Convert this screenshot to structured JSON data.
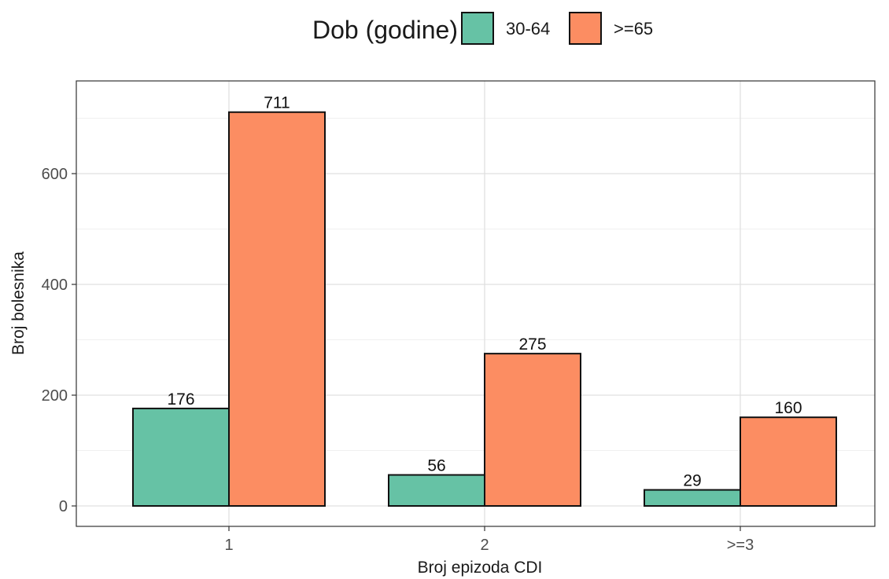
{
  "chart_data": {
    "type": "bar",
    "categories": [
      "1",
      "2",
      ">=3"
    ],
    "series": [
      {
        "name": "30-64",
        "values": [
          176,
          56,
          29
        ],
        "color": "#66c2a5"
      },
      {
        "name": ">=65",
        "values": [
          711,
          275,
          160
        ],
        "color": "#fc8d62"
      }
    ],
    "legend_title": "Dob (godine)",
    "legend_position": "top",
    "xlabel": "Broj epizoda CDI",
    "ylabel": "Broj bolesnika",
    "ylim": [
      -35,
      746
    ],
    "yticks": [
      "0",
      "200",
      "400",
      "600"
    ],
    "grid": true,
    "bar_outline_color": "#111111"
  }
}
